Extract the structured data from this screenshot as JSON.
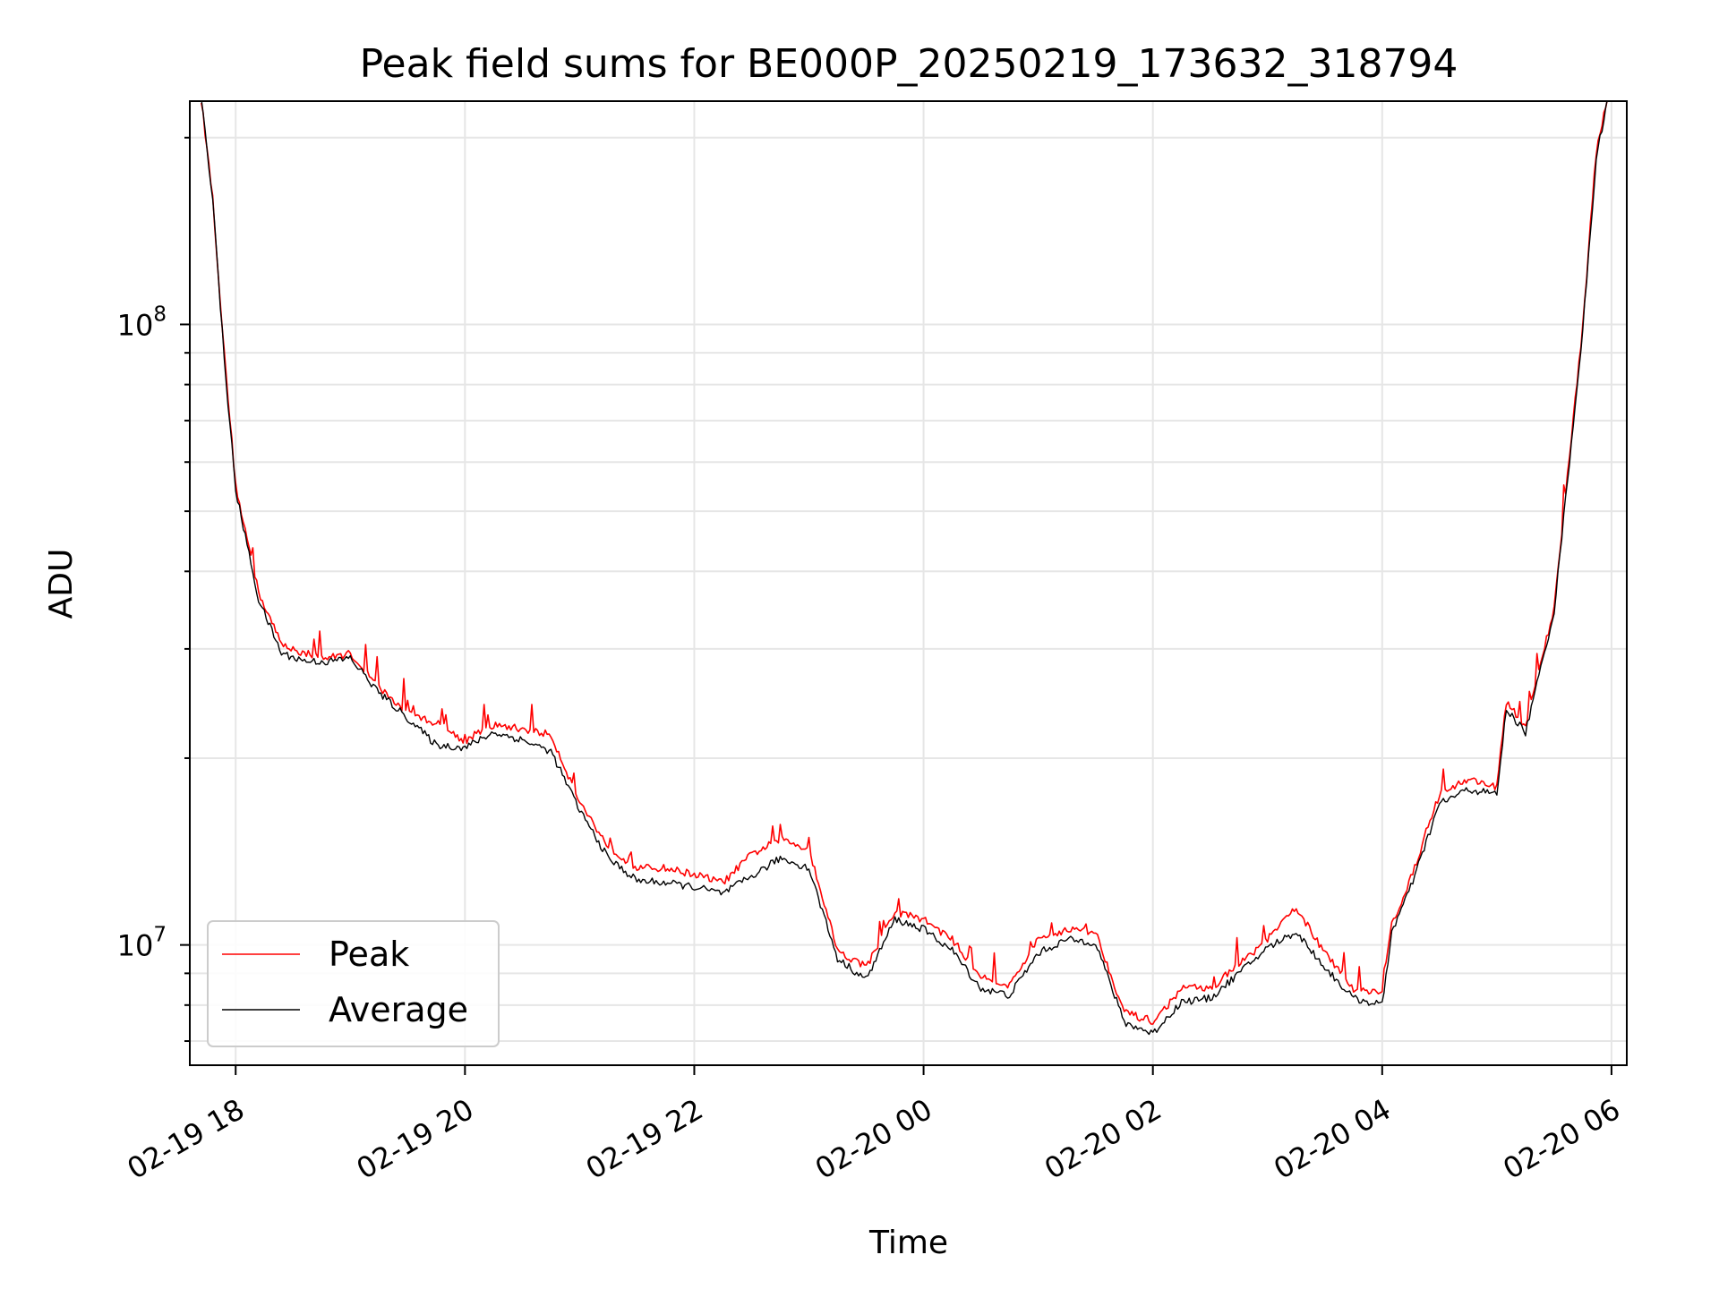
{
  "chart_data": {
    "type": "line",
    "title": "Peak field sums for BE000P_20250219_173632_318794",
    "xlabel": "Time",
    "ylabel": "ADU",
    "y_scale": "log",
    "ylim": [
      6400000,
      229000000
    ],
    "xlim": [
      "2025-02-19 17:36",
      "2025-02-20 06:08"
    ],
    "x_ticks": [
      "02-19 18",
      "02-19 20",
      "02-19 22",
      "02-20 00",
      "02-20 02",
      "02-20 04",
      "02-20 06"
    ],
    "y_ticks": [
      {
        "value": 10000000,
        "base": "10",
        "exp": "7"
      },
      {
        "value": 100000000,
        "base": "10",
        "exp": "8"
      }
    ],
    "grid": true,
    "legend": "lower-left",
    "series": [
      {
        "name": "Peak",
        "color": "#ff0000",
        "points": [
          [
            "2025-02-19 17:42",
            230000000
          ],
          [
            "2025-02-19 17:48",
            160000000
          ],
          [
            "2025-02-19 17:54",
            90000000
          ],
          [
            "2025-02-19 18:00",
            55000000
          ],
          [
            "2025-02-19 18:12",
            37000000
          ],
          [
            "2025-02-19 18:24",
            30500000
          ],
          [
            "2025-02-19 18:36",
            29500000
          ],
          [
            "2025-02-19 18:48",
            29000000
          ],
          [
            "2025-02-19 19:00",
            29500000
          ],
          [
            "2025-02-19 19:15",
            26000000
          ],
          [
            "2025-02-19 19:30",
            23600000
          ],
          [
            "2025-02-19 19:45",
            22800000
          ],
          [
            "2025-02-19 20:00",
            21300000
          ],
          [
            "2025-02-19 20:15",
            22600000
          ],
          [
            "2025-02-19 20:30",
            22300000
          ],
          [
            "2025-02-19 20:45",
            21800000
          ],
          [
            "2025-02-19 21:00",
            17000000
          ],
          [
            "2025-02-19 21:15",
            14400000
          ],
          [
            "2025-02-19 21:30",
            13300000
          ],
          [
            "2025-02-19 21:45",
            13300000
          ],
          [
            "2025-02-19 22:00",
            13000000
          ],
          [
            "2025-02-19 22:15",
            12600000
          ],
          [
            "2025-02-19 22:30",
            14000000
          ],
          [
            "2025-02-19 22:45",
            14800000
          ],
          [
            "2025-02-19 23:00",
            14300000
          ],
          [
            "2025-02-19 23:15",
            9800000
          ],
          [
            "2025-02-19 23:30",
            9200000
          ],
          [
            "2025-02-19 23:45",
            11300000
          ],
          [
            "2025-02-20 00:00",
            11000000
          ],
          [
            "2025-02-20 00:15",
            10200000
          ],
          [
            "2025-02-20 00:30",
            8900000
          ],
          [
            "2025-02-20 00:45",
            8600000
          ],
          [
            "2025-02-20 01:00",
            10200000
          ],
          [
            "2025-02-20 01:15",
            10600000
          ],
          [
            "2025-02-20 01:30",
            10500000
          ],
          [
            "2025-02-20 01:45",
            7800000
          ],
          [
            "2025-02-20 02:00",
            7500000
          ],
          [
            "2025-02-20 02:15",
            8500000
          ],
          [
            "2025-02-20 02:30",
            8500000
          ],
          [
            "2025-02-20 02:45",
            9300000
          ],
          [
            "2025-02-20 03:00",
            10200000
          ],
          [
            "2025-02-20 03:15",
            11500000
          ],
          [
            "2025-02-20 03:30",
            9700000
          ],
          [
            "2025-02-20 03:45",
            8500000
          ],
          [
            "2025-02-20 04:00",
            8400000
          ],
          [
            "2025-02-20 04:05",
            10800000
          ],
          [
            "2025-02-20 04:15",
            12800000
          ],
          [
            "2025-02-20 04:30",
            17500000
          ],
          [
            "2025-02-20 04:45",
            18500000
          ],
          [
            "2025-02-20 05:00",
            18000000
          ],
          [
            "2025-02-20 05:05",
            24600000
          ],
          [
            "2025-02-20 05:15",
            22500000
          ],
          [
            "2025-02-20 05:30",
            35000000
          ],
          [
            "2025-02-20 05:45",
            100000000
          ],
          [
            "2025-02-20 05:52",
            190000000
          ],
          [
            "2025-02-20 05:58",
            232000000
          ]
        ]
      },
      {
        "name": "Average",
        "color": "#000000",
        "points": [
          [
            "2025-02-19 17:42",
            230000000
          ],
          [
            "2025-02-19 17:48",
            160000000
          ],
          [
            "2025-02-19 17:54",
            88000000
          ],
          [
            "2025-02-19 18:00",
            54000000
          ],
          [
            "2025-02-19 18:12",
            36000000
          ],
          [
            "2025-02-19 18:24",
            29500000
          ],
          [
            "2025-02-19 18:36",
            28700000
          ],
          [
            "2025-02-19 18:48",
            28600000
          ],
          [
            "2025-02-19 19:00",
            29000000
          ],
          [
            "2025-02-19 19:15",
            25500000
          ],
          [
            "2025-02-19 19:30",
            23200000
          ],
          [
            "2025-02-19 19:45",
            21000000
          ],
          [
            "2025-02-19 20:00",
            20800000
          ],
          [
            "2025-02-19 20:15",
            22000000
          ],
          [
            "2025-02-19 20:30",
            21400000
          ],
          [
            "2025-02-19 20:45",
            20500000
          ],
          [
            "2025-02-19 21:00",
            16500000
          ],
          [
            "2025-02-19 21:15",
            13800000
          ],
          [
            "2025-02-19 21:30",
            12700000
          ],
          [
            "2025-02-19 21:45",
            12600000
          ],
          [
            "2025-02-19 22:00",
            12400000
          ],
          [
            "2025-02-19 22:15",
            12100000
          ],
          [
            "2025-02-19 22:30",
            12900000
          ],
          [
            "2025-02-19 22:45",
            13800000
          ],
          [
            "2025-02-19 23:00",
            13300000
          ],
          [
            "2025-02-19 23:15",
            9500000
          ],
          [
            "2025-02-19 23:30",
            8800000
          ],
          [
            "2025-02-19 23:45",
            11000000
          ],
          [
            "2025-02-20 00:00",
            10600000
          ],
          [
            "2025-02-20 00:15",
            9800000
          ],
          [
            "2025-02-20 00:30",
            8500000
          ],
          [
            "2025-02-20 00:45",
            8300000
          ],
          [
            "2025-02-20 01:00",
            9700000
          ],
          [
            "2025-02-20 01:15",
            10200000
          ],
          [
            "2025-02-20 01:30",
            10100000
          ],
          [
            "2025-02-20 01:45",
            7500000
          ],
          [
            "2025-02-20 02:00",
            7200000
          ],
          [
            "2025-02-20 02:15",
            8100000
          ],
          [
            "2025-02-20 02:30",
            8200000
          ],
          [
            "2025-02-20 02:45",
            9000000
          ],
          [
            "2025-02-20 03:00",
            9900000
          ],
          [
            "2025-02-20 03:15",
            10500000
          ],
          [
            "2025-02-20 03:30",
            9200000
          ],
          [
            "2025-02-20 03:45",
            8200000
          ],
          [
            "2025-02-20 04:00",
            8000000
          ],
          [
            "2025-02-20 04:05",
            10500000
          ],
          [
            "2025-02-20 04:15",
            12400000
          ],
          [
            "2025-02-20 04:30",
            16900000
          ],
          [
            "2025-02-20 04:45",
            17800000
          ],
          [
            "2025-02-20 05:00",
            17500000
          ],
          [
            "2025-02-20 05:05",
            24000000
          ],
          [
            "2025-02-20 05:15",
            22000000
          ],
          [
            "2025-02-20 05:30",
            34500000
          ],
          [
            "2025-02-20 05:45",
            98000000
          ],
          [
            "2025-02-20 05:52",
            185000000
          ],
          [
            "2025-02-20 05:58",
            232000000
          ]
        ]
      }
    ]
  }
}
